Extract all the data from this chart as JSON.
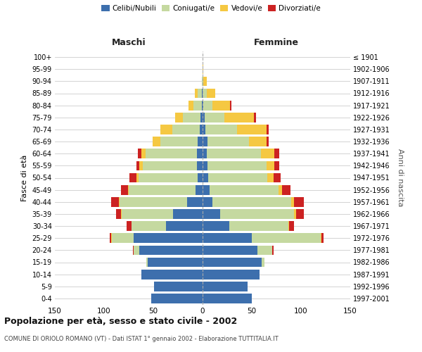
{
  "age_groups": [
    "0-4",
    "5-9",
    "10-14",
    "15-19",
    "20-24",
    "25-29",
    "30-34",
    "35-39",
    "40-44",
    "45-49",
    "50-54",
    "55-59",
    "60-64",
    "65-69",
    "70-74",
    "75-79",
    "80-84",
    "85-89",
    "90-94",
    "95-99",
    "100+"
  ],
  "birth_years": [
    "1997-2001",
    "1992-1996",
    "1987-1991",
    "1982-1986",
    "1977-1981",
    "1972-1976",
    "1967-1971",
    "1962-1966",
    "1957-1961",
    "1952-1956",
    "1947-1951",
    "1942-1946",
    "1937-1941",
    "1932-1936",
    "1927-1931",
    "1922-1926",
    "1917-1921",
    "1912-1916",
    "1907-1911",
    "1902-1906",
    "≤ 1901"
  ],
  "male": {
    "celibi": [
      52,
      49,
      62,
      56,
      64,
      70,
      37,
      30,
      16,
      7,
      5,
      6,
      6,
      5,
      3,
      2,
      1,
      1,
      0,
      0,
      0
    ],
    "coniugati": [
      0,
      0,
      0,
      1,
      6,
      22,
      35,
      52,
      68,
      68,
      60,
      55,
      52,
      38,
      28,
      18,
      8,
      4,
      1,
      0,
      0
    ],
    "vedovi": [
      0,
      0,
      0,
      0,
      0,
      1,
      0,
      1,
      1,
      1,
      2,
      3,
      4,
      8,
      12,
      8,
      5,
      3,
      0,
      0,
      0
    ],
    "divorziati": [
      0,
      0,
      0,
      0,
      1,
      1,
      5,
      5,
      8,
      7,
      7,
      3,
      4,
      0,
      0,
      0,
      0,
      0,
      0,
      0,
      0
    ]
  },
  "female": {
    "nubili": [
      50,
      46,
      58,
      60,
      56,
      50,
      27,
      18,
      10,
      7,
      6,
      5,
      4,
      5,
      3,
      2,
      1,
      0,
      0,
      0,
      0
    ],
    "coniugate": [
      0,
      0,
      0,
      3,
      15,
      70,
      60,
      75,
      80,
      70,
      60,
      60,
      55,
      42,
      32,
      20,
      9,
      4,
      1,
      0,
      0
    ],
    "vedove": [
      0,
      0,
      0,
      0,
      0,
      1,
      1,
      2,
      3,
      4,
      6,
      8,
      14,
      18,
      30,
      30,
      18,
      9,
      3,
      1,
      0
    ],
    "divorziate": [
      0,
      0,
      0,
      0,
      1,
      2,
      5,
      8,
      10,
      8,
      7,
      5,
      5,
      2,
      2,
      2,
      1,
      0,
      0,
      0,
      0
    ]
  },
  "colors": {
    "celibi": "#3d6fad",
    "coniugati": "#c5d9a0",
    "vedovi": "#f5c842",
    "divorziati": "#cc2222"
  },
  "xlim": 150,
  "title": "Popolazione per età, sesso e stato civile - 2002",
  "subtitle": "COMUNE DI ORIOLO ROMANO (VT) - Dati ISTAT 1° gennaio 2002 - Elaborazione TUTTITALIA.IT",
  "ylabel_left": "Fasce di età",
  "ylabel_right": "Anni di nascita",
  "xlabel_left": "Maschi",
  "xlabel_right": "Femmine",
  "bg_color": "#ffffff",
  "grid_color": "#cccccc"
}
